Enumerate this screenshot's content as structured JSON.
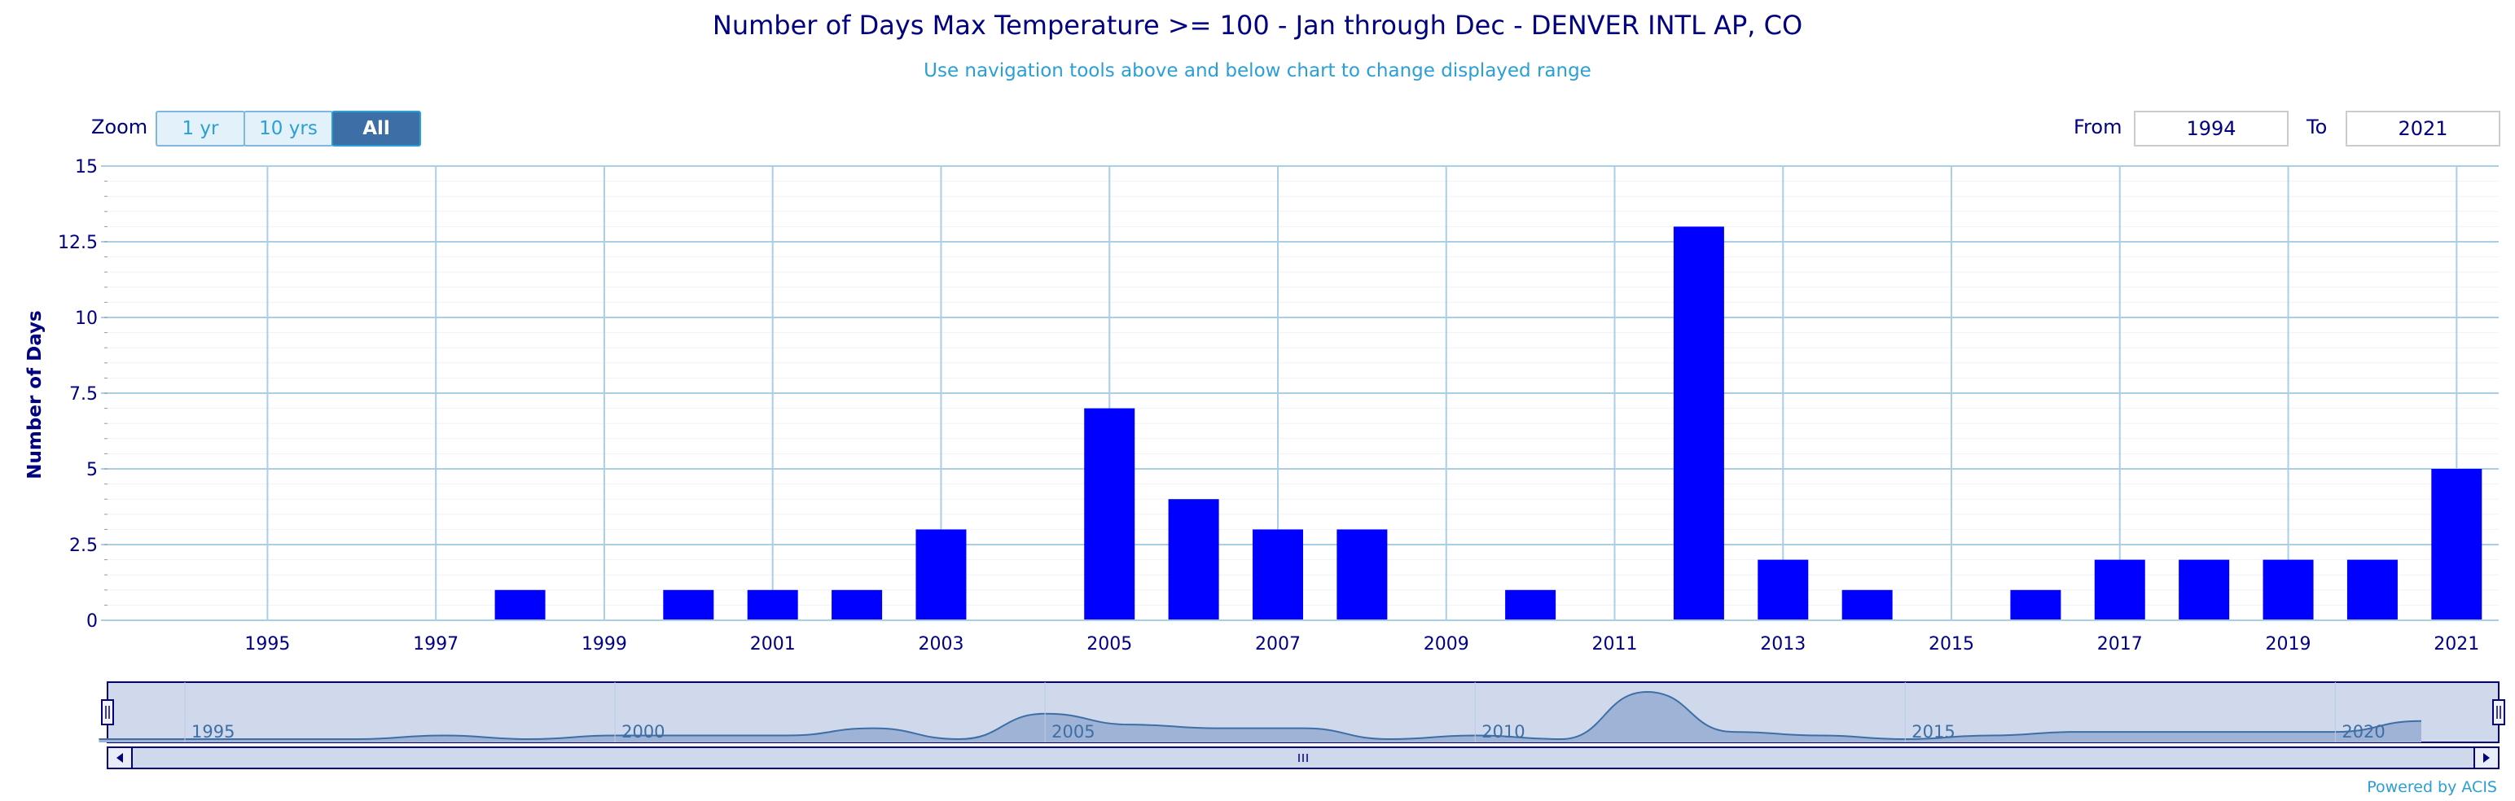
{
  "title": "Number of Days Max Temperature >= 100 - Jan through Dec - DENVER INTL AP, CO",
  "subtitle": "Use navigation tools above and below chart to change displayed range",
  "zoom": {
    "label": "Zoom",
    "buttons": [
      {
        "label": "1 yr",
        "active": false
      },
      {
        "label": "10 yrs",
        "active": false
      },
      {
        "label": "All",
        "active": true
      }
    ]
  },
  "range": {
    "from_label": "From",
    "from_value": "1994",
    "to_label": "To",
    "to_value": "2021"
  },
  "powered_by": "Powered by ACIS",
  "colors": {
    "bar": "#0000ff",
    "grid": "#a9cfe8",
    "axis_text": "#000080",
    "navigator_fill": "#9fb3d6",
    "navigator_mask": "#d0d9ec"
  },
  "chart_data": {
    "type": "bar",
    "title": "Number of Days Max Temperature >= 100 - Jan through Dec - DENVER INTL AP, CO",
    "ylabel": "Number of Days",
    "xlabel": "",
    "ylim": [
      0,
      15
    ],
    "yticks": [
      "0",
      "2.5",
      "5",
      "7.5",
      "10",
      "12.5",
      "15"
    ],
    "xticks": [
      "1995",
      "1997",
      "1999",
      "2001",
      "2003",
      "2005",
      "2007",
      "2009",
      "2011",
      "2013",
      "2015",
      "2017",
      "2019",
      "2021"
    ],
    "categories": [
      1994,
      1995,
      1996,
      1997,
      1998,
      1999,
      2000,
      2001,
      2002,
      2003,
      2004,
      2005,
      2006,
      2007,
      2008,
      2009,
      2010,
      2011,
      2012,
      2013,
      2014,
      2015,
      2016,
      2017,
      2018,
      2019,
      2020,
      2021
    ],
    "values": [
      0,
      0,
      0,
      0,
      1,
      0,
      1,
      1,
      1,
      3,
      0,
      7,
      4,
      3,
      3,
      0,
      1,
      0,
      13,
      2,
      1,
      0,
      1,
      2,
      2,
      2,
      2,
      5
    ],
    "grid": true,
    "legend": "none",
    "navigator": {
      "xticks": [
        "1995",
        "2000",
        "2005",
        "2010",
        "2015",
        "2020"
      ]
    }
  }
}
